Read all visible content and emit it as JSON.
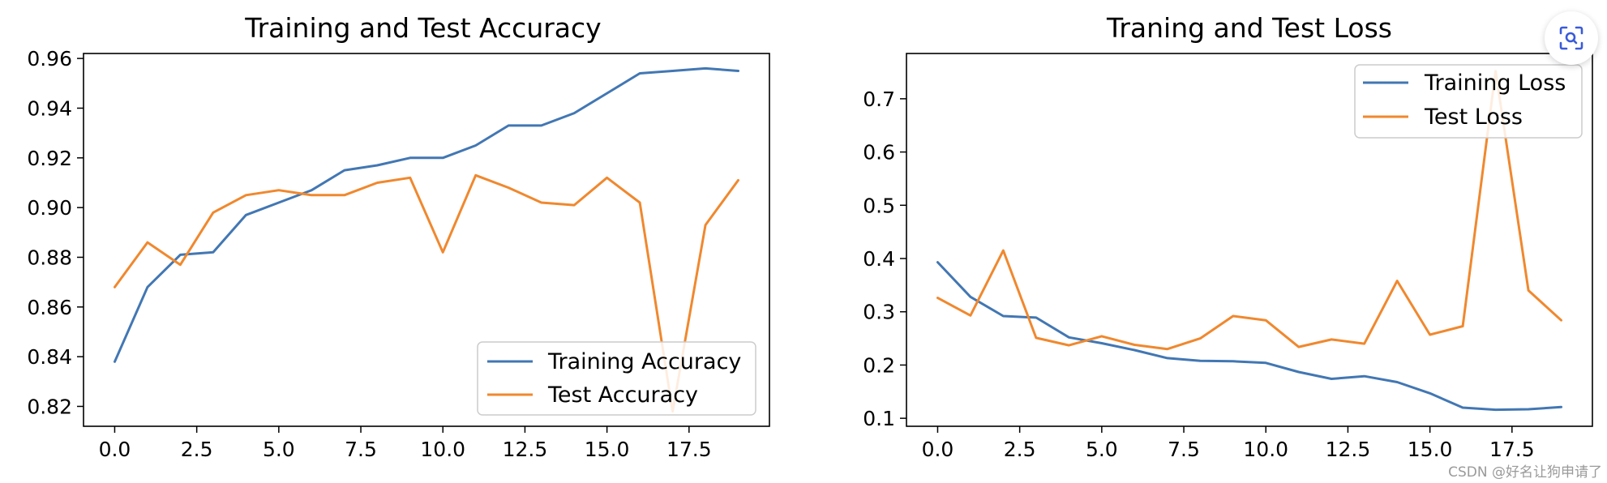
{
  "chart_data": [
    {
      "type": "line",
      "title": "Training and Test Accuracy",
      "xlabel": "",
      "ylabel": "",
      "xlim": [
        -0.95,
        19.95
      ],
      "ylim": [
        0.812,
        0.962
      ],
      "x": [
        0,
        1,
        2,
        3,
        4,
        5,
        6,
        7,
        8,
        9,
        10,
        11,
        12,
        13,
        14,
        15,
        16,
        17,
        18,
        19
      ],
      "xticks": [
        0.0,
        2.5,
        5.0,
        7.5,
        10.0,
        12.5,
        15.0,
        17.5
      ],
      "xtick_labels": [
        "0.0",
        "2.5",
        "5.0",
        "7.5",
        "10.0",
        "12.5",
        "15.0",
        "17.5"
      ],
      "yticks": [
        0.82,
        0.84,
        0.86,
        0.88,
        0.9,
        0.92,
        0.94,
        0.96
      ],
      "ytick_labels": [
        "0.82",
        "0.84",
        "0.86",
        "0.88",
        "0.90",
        "0.92",
        "0.94",
        "0.96"
      ],
      "legend_position": "lower-right",
      "series": [
        {
          "name": "Training Accuracy",
          "color": "#4277b3",
          "values": [
            0.838,
            0.868,
            0.881,
            0.882,
            0.897,
            0.902,
            0.907,
            0.915,
            0.917,
            0.92,
            0.92,
            0.925,
            0.933,
            0.933,
            0.938,
            0.946,
            0.954,
            0.955,
            0.956,
            0.955
          ]
        },
        {
          "name": "Test Accuracy",
          "color": "#f0882e",
          "values": [
            0.868,
            0.886,
            0.877,
            0.898,
            0.905,
            0.907,
            0.905,
            0.905,
            0.91,
            0.912,
            0.882,
            0.913,
            0.908,
            0.902,
            0.901,
            0.912,
            0.902,
            0.818,
            0.893,
            0.911
          ]
        }
      ]
    },
    {
      "type": "line",
      "title": "Traning and Test Loss",
      "xlabel": "",
      "ylabel": "",
      "xlim": [
        -0.95,
        19.95
      ],
      "ylim": [
        0.085,
        0.785
      ],
      "x": [
        0,
        1,
        2,
        3,
        4,
        5,
        6,
        7,
        8,
        9,
        10,
        11,
        12,
        13,
        14,
        15,
        16,
        17,
        18,
        19
      ],
      "xticks": [
        0.0,
        2.5,
        5.0,
        7.5,
        10.0,
        12.5,
        15.0,
        17.5
      ],
      "xtick_labels": [
        "0.0",
        "2.5",
        "5.0",
        "7.5",
        "10.0",
        "12.5",
        "15.0",
        "17.5"
      ],
      "yticks": [
        0.1,
        0.2,
        0.3,
        0.4,
        0.5,
        0.6,
        0.7
      ],
      "ytick_labels": [
        "0.1",
        "0.2",
        "0.3",
        "0.4",
        "0.5",
        "0.6",
        "0.7"
      ],
      "legend_position": "upper-right",
      "series": [
        {
          "name": "Training Loss",
          "color": "#4277b3",
          "values": [
            0.393,
            0.328,
            0.292,
            0.289,
            0.252,
            0.241,
            0.228,
            0.213,
            0.208,
            0.207,
            0.204,
            0.187,
            0.174,
            0.179,
            0.168,
            0.147,
            0.12,
            0.116,
            0.117,
            0.121
          ]
        },
        {
          "name": "Test Loss",
          "color": "#f0882e",
          "values": [
            0.326,
            0.293,
            0.415,
            0.251,
            0.237,
            0.254,
            0.238,
            0.23,
            0.25,
            0.292,
            0.284,
            0.234,
            0.248,
            0.24,
            0.358,
            0.257,
            0.273,
            0.752,
            0.34,
            0.284
          ]
        }
      ]
    }
  ],
  "watermark": "CSDN @好名让狗申请了",
  "overlay": {
    "icon": "scan-icon"
  }
}
